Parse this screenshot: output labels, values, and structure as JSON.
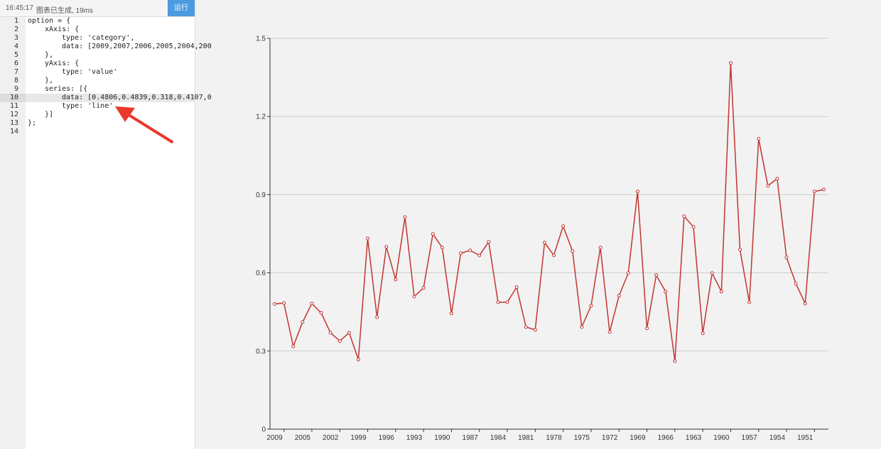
{
  "status": {
    "time": "16:45:17",
    "message": "图表已生成, 19ms",
    "button": "运行"
  },
  "editor": {
    "line_numbers": [
      1,
      2,
      3,
      4,
      5,
      6,
      7,
      8,
      9,
      10,
      11,
      12,
      13,
      14
    ],
    "lines": [
      "option = {",
      "xAxis: {",
      "type: 'category',",
      "data: [2009,2007,2006,2005,2004,200",
      "},",
      "yAxis: {",
      "type: 'value'",
      "},",
      "series: [{",
      "data: [0.4806,0.4839,0.318,0.4107,0",
      "type: 'line'",
      "}]",
      "};"
    ]
  },
  "chart_data": {
    "type": "line",
    "categories": [
      "2009",
      null,
      null,
      "2005",
      null,
      null,
      "2002",
      null,
      null,
      "1999",
      null,
      null,
      "1996",
      null,
      null,
      "1993",
      null,
      null,
      "1990",
      null,
      null,
      "1987",
      null,
      null,
      "1984",
      null,
      null,
      "1981",
      null,
      null,
      "1978",
      null,
      null,
      "1975",
      null,
      null,
      "1972",
      null,
      null,
      "1969",
      null,
      null,
      "1966",
      null,
      null,
      "1963",
      null,
      null,
      "1960",
      null,
      null,
      "1957",
      null,
      null,
      "1954",
      null,
      null,
      "1951",
      null,
      null
    ],
    "values": [
      0.4806,
      0.4839,
      0.318,
      0.4107,
      0.482,
      0.446,
      0.37,
      0.338,
      0.37,
      0.267,
      0.732,
      0.43,
      0.7,
      0.574,
      0.814,
      0.509,
      0.542,
      0.749,
      0.697,
      0.444,
      0.675,
      0.686,
      0.667,
      0.719,
      0.487,
      0.487,
      0.545,
      0.392,
      0.381,
      0.716,
      0.667,
      0.779,
      0.683,
      0.392,
      0.474,
      0.697,
      0.373,
      0.512,
      0.599,
      0.912,
      0.387,
      0.591,
      0.528,
      0.261,
      0.817,
      0.776,
      0.368,
      0.599,
      0.528,
      1.405,
      0.689,
      0.487,
      1.114,
      0.934,
      0.961,
      0.659,
      0.558,
      0.482,
      0.912,
      0.92
    ],
    "color": "#c23531",
    "ylim": [
      0,
      1.5
    ],
    "yticks": [
      0,
      0.3,
      0.6,
      0.9,
      1.2,
      1.5
    ],
    "grid": true
  }
}
